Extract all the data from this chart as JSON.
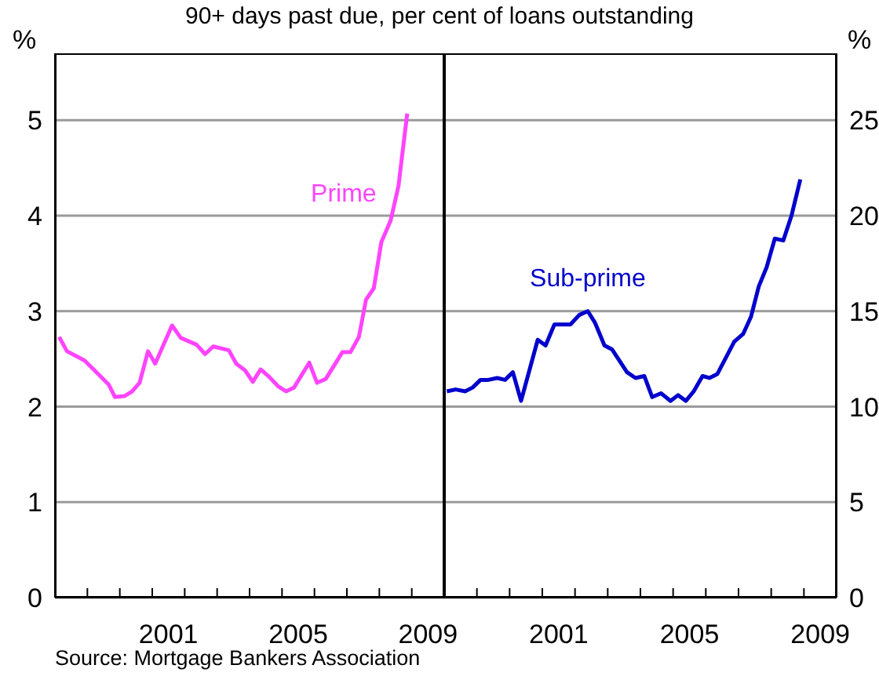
{
  "chart_data": [
    {
      "type": "line",
      "title": "90+ days past due, per cent of loans outstanding",
      "ylabel": "%",
      "annotations": [
        "Source: Mortgage Bankers Association"
      ],
      "x": [
        1998.13,
        1998.37,
        1998.71,
        1998.92,
        1999.19,
        1999.66,
        1999.85,
        2000.14,
        2000.38,
        2000.61,
        2000.87,
        2001.09,
        2001.61,
        2001.88,
        2002.36,
        2002.63,
        2002.88,
        2003.36,
        2003.59,
        2003.86,
        2004.1,
        2004.34,
        2004.58,
        2004.89,
        2005.13,
        2005.37,
        2005.84,
        2006.08,
        2006.35,
        2006.86,
        2007.11,
        2007.37,
        2007.59,
        2007.83,
        2008.06,
        2008.35,
        2008.59,
        2008.86
      ],
      "series": [
        {
          "name": "Prime",
          "color": "#ff44ff",
          "values": [
            2.73,
            2.58,
            2.52,
            2.48,
            2.39,
            2.23,
            2.1,
            2.11,
            2.16,
            2.25,
            2.58,
            2.45,
            2.85,
            2.72,
            2.65,
            2.55,
            2.63,
            2.59,
            2.45,
            2.38,
            2.26,
            2.39,
            2.32,
            2.21,
            2.16,
            2.2,
            2.46,
            2.25,
            2.29,
            2.57,
            2.57,
            2.73,
            3.12,
            3.24,
            3.72,
            3.95,
            4.31,
            5.07
          ]
        }
      ],
      "xlim": [
        1998,
        2010
      ],
      "xticks": [
        {
          "value": 1999,
          "label": null
        },
        {
          "value": 2000,
          "label": null
        },
        {
          "value": 2001,
          "label": null
        },
        {
          "value": 2001.5,
          "label": "2001"
        },
        {
          "value": 2002,
          "label": null
        },
        {
          "value": 2003,
          "label": null
        },
        {
          "value": 2004,
          "label": null
        },
        {
          "value": 2005,
          "label": null
        },
        {
          "value": 2005.5,
          "label": "2005"
        },
        {
          "value": 2006,
          "label": null
        },
        {
          "value": 2007,
          "label": null
        },
        {
          "value": 2008,
          "label": null
        },
        {
          "value": 2009,
          "label": null
        },
        {
          "value": 2009.5,
          "label": "2009"
        }
      ],
      "ylim": [
        0,
        5.7
      ],
      "yticks": [
        0,
        1,
        2,
        3,
        4,
        5
      ],
      "grid": "y",
      "marker": "none",
      "line_style": "solid"
    },
    {
      "type": "line",
      "y2label": "%",
      "x": [
        1998.08,
        1998.35,
        1998.64,
        1998.87,
        1999.11,
        1999.35,
        1999.62,
        1999.86,
        2000.1,
        2000.35,
        2000.86,
        2001.1,
        2001.37,
        2001.86,
        2002.13,
        2002.39,
        2002.61,
        2002.9,
        2003.13,
        2003.59,
        2003.85,
        2004.12,
        2004.36,
        2004.63,
        2004.92,
        2005.15,
        2005.39,
        2005.63,
        2005.9,
        2006.11,
        2006.35,
        2006.87,
        2007.14,
        2007.38,
        2007.62,
        2007.86,
        2008.11,
        2008.37,
        2008.62,
        2008.89
      ],
      "series": [
        {
          "name": "Sub-prime",
          "color": "#0000cc",
          "axis": "y2",
          "values": [
            10.8,
            10.9,
            10.8,
            11.0,
            11.4,
            11.4,
            11.5,
            11.4,
            11.8,
            10.3,
            13.5,
            13.2,
            14.3,
            14.3,
            14.8,
            15.0,
            14.4,
            13.2,
            13.0,
            11.8,
            11.5,
            11.6,
            10.5,
            10.7,
            10.3,
            10.6,
            10.3,
            10.8,
            11.6,
            11.5,
            11.7,
            13.4,
            13.8,
            14.7,
            16.3,
            17.3,
            18.8,
            18.7,
            20.0,
            21.9
          ]
        }
      ],
      "xlim": [
        1998,
        2010
      ],
      "xticks": [
        {
          "value": 1999,
          "label": null
        },
        {
          "value": 2000,
          "label": null
        },
        {
          "value": 2001,
          "label": null
        },
        {
          "value": 2001.5,
          "label": "2001"
        },
        {
          "value": 2002,
          "label": null
        },
        {
          "value": 2003,
          "label": null
        },
        {
          "value": 2004,
          "label": null
        },
        {
          "value": 2005,
          "label": null
        },
        {
          "value": 2005.5,
          "label": "2005"
        },
        {
          "value": 2006,
          "label": null
        },
        {
          "value": 2007,
          "label": null
        },
        {
          "value": 2008,
          "label": null
        },
        {
          "value": 2009,
          "label": null
        },
        {
          "value": 2009.5,
          "label": "2009"
        }
      ],
      "y2lim": [
        0,
        28.5
      ],
      "y2ticks": [
        0,
        5,
        10,
        15,
        20,
        25
      ],
      "grid": "y",
      "marker": "none",
      "line_style": "solid"
    }
  ]
}
